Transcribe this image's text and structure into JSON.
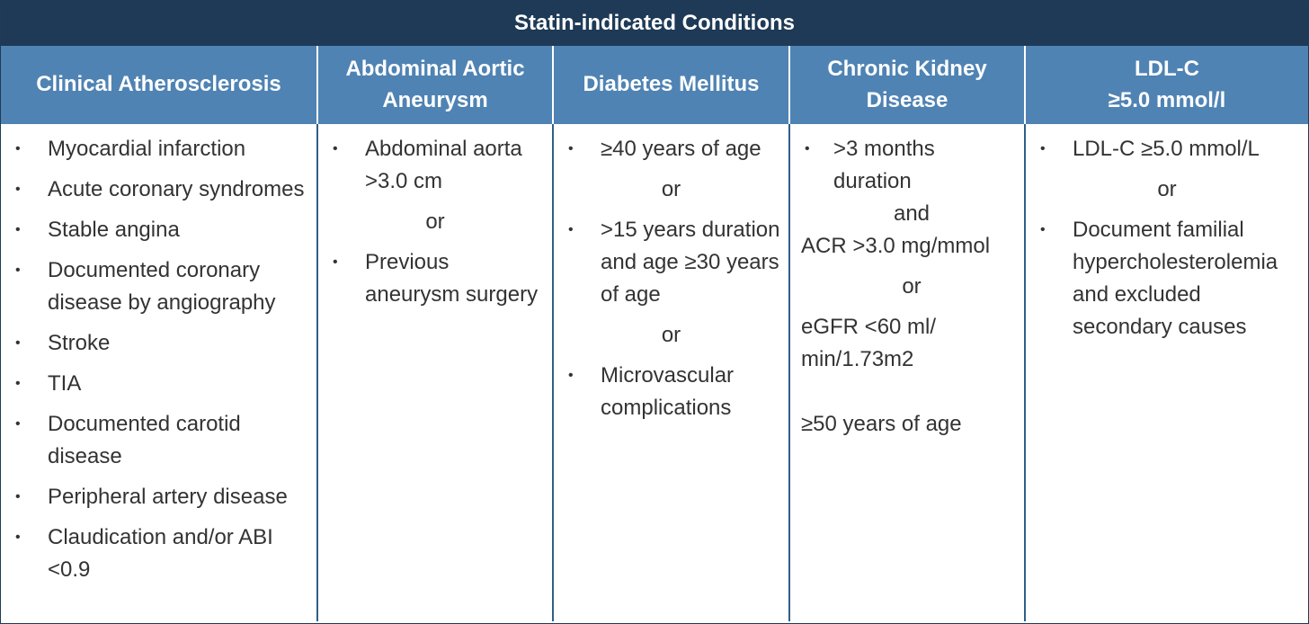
{
  "title": "Statin-indicated Conditions",
  "headers": [
    "Clinical Atherosclerosis",
    "Abdominal Aortic Aneurysm",
    "Diabetes Mellitus",
    "Chronic Kidney Disease",
    "LDL-C\n≥5.0 mmol/l"
  ],
  "col1": [
    "Myocardial infarction",
    "Acute coronary syndromes",
    "Stable angina",
    "Documented coronary disease by angiography",
    "Stroke",
    "TIA",
    "Documented carotid disease",
    "Peripheral artery disease",
    "Claudication and/or ABI <0.9"
  ],
  "col2": {
    "item1": "Abdominal aorta >3.0 cm",
    "or": "or",
    "item2": "Previous aneurysm surgery"
  },
  "col3": {
    "item1": "≥40 years of age",
    "or1": "or",
    "item2": ">15 years duration and age ≥30 years of age",
    "or2": "or",
    "item3": "Microvascular complications"
  },
  "col4": {
    "item1": ">3 months duration",
    "and": "and",
    "acr": "ACR >3.0 mg/mmol",
    "or": "or",
    "egfr": "eGFR <60 ml/ min/1.73m2",
    "age": "≥50 years of age"
  },
  "col5": {
    "item1": "LDL-C ≥5.0 mmol/L",
    "or": "or",
    "item2": "Document familial hypercholesterolemia and excluded secondary causes"
  }
}
